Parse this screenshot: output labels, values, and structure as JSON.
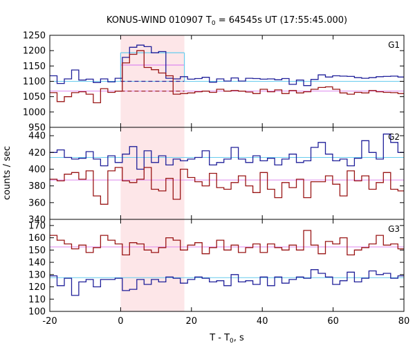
{
  "chart_data": {
    "type": "line",
    "title": {
      "main": "KONUS-WIND 010907 T",
      "sub": "0",
      "rest": " = 64545s UT (17:55:45.000)"
    },
    "xlabel": {
      "main": "T - T",
      "sub": "0",
      "rest": ", s"
    },
    "ylabel": "counts / sec",
    "xlim": [
      -20,
      80
    ],
    "xticks": [
      -20,
      0,
      20,
      40,
      60,
      80
    ],
    "grid": false,
    "colors": {
      "blue": "#1f1f99",
      "red": "#991414",
      "cyan": "#66ccee",
      "violet": "#dd88ee",
      "shade": "#fde6e8"
    },
    "shaded_interval": [
      0,
      18
    ],
    "step": 2.048,
    "panels": [
      {
        "label": "G1",
        "ylim": [
          950,
          1250
        ],
        "yticks": [
          950,
          1000,
          1050,
          1100,
          1150,
          1200,
          1250
        ],
        "series": [
          {
            "color": "blue",
            "values": [
              1118,
              1093,
              1108,
              1137,
              1104,
              1107,
              1096,
              1108,
              1098,
              1110,
              1178,
              1211,
              1218,
              1213,
              1193,
              1197,
              1110,
              1108,
              1115,
              1107,
              1109,
              1113,
              1097,
              1108,
              1101,
              1111,
              1101,
              1110,
              1109,
              1107,
              1108,
              1105,
              1109,
              1090,
              1104,
              1086,
              1106,
              1121,
              1114,
              1118,
              1117,
              1116,
              1112,
              1110,
              1112,
              1115,
              1116,
              1117,
              1114
            ]
          },
          {
            "color": "red",
            "values": [
              1063,
              1034,
              1050,
              1063,
              1066,
              1058,
              1030,
              1076,
              1064,
              1068,
              1160,
              1188,
              1200,
              1145,
              1138,
              1127,
              1118,
              1058,
              1060,
              1062,
              1066,
              1068,
              1064,
              1074,
              1068,
              1070,
              1068,
              1065,
              1060,
              1074,
              1066,
              1072,
              1060,
              1070,
              1062,
              1066,
              1074,
              1080,
              1082,
              1074,
              1062,
              1058,
              1064,
              1062,
              1070,
              1066,
              1064,
              1063,
              1060
            ]
          }
        ],
        "levels": [
          {
            "color": "cyan",
            "value": 1100
          },
          {
            "color": "violet",
            "value": 1068
          }
        ],
        "burst_levels": [
          {
            "color": "cyan",
            "value": 1193,
            "style": "solid"
          },
          {
            "color": "violet",
            "value": 1153,
            "style": "solid"
          },
          {
            "color": "blue",
            "value": 1100,
            "style": "dashed"
          },
          {
            "color": "red",
            "value": 1068,
            "style": "dashed"
          }
        ]
      },
      {
        "label": "G2",
        "ylim": [
          340,
          450
        ],
        "yticks": [
          340,
          360,
          380,
          400,
          420,
          440
        ],
        "series": [
          {
            "color": "blue",
            "values": [
              420,
              423,
              414,
              412,
              413,
              421,
              412,
              404,
              416,
              408,
              418,
              427,
              400,
              422,
              408,
              416,
              405,
              412,
              410,
              412,
              414,
              422,
              405,
              408,
              412,
              426,
              412,
              408,
              416,
              410,
              413,
              405,
              412,
              418,
              408,
              410,
              426,
              432,
              418,
              410,
              412,
              404,
              413,
              434,
              420,
              412,
              442,
              432,
              420,
              414
            ]
          },
          {
            "color": "red",
            "values": [
              388,
              386,
              394,
              396,
              388,
              398,
              368,
              358,
              398,
              402,
              386,
              384,
              388,
              402,
              376,
              374,
              389,
              364,
              400,
              390,
              385,
              380,
              395,
              378,
              376,
              384,
              392,
              380,
              372,
              396,
              376,
              366,
              384,
              378,
              388,
              366,
              385,
              385,
              392,
              382,
              368,
              398,
              386,
              392,
              376,
              384,
              396,
              376,
              374,
              390
            ]
          }
        ],
        "levels": [
          {
            "color": "cyan",
            "value": 414
          },
          {
            "color": "violet",
            "value": 387
          }
        ],
        "burst_levels": []
      },
      {
        "label": "G3",
        "ylim": [
          100,
          175
        ],
        "yticks": [
          100,
          110,
          120,
          130,
          140,
          150,
          160,
          170
        ],
        "series": [
          {
            "color": "blue",
            "values": [
              129,
              121,
              127,
              113,
              124,
              126,
              120,
              126,
              126,
              127,
              117,
              118,
              126,
              122,
              126,
              124,
              128,
              127,
              123,
              126,
              128,
              127,
              124,
              125,
              121,
              130,
              124,
              125,
              122,
              128,
              121,
              128,
              123,
              126,
              128,
              127,
              134,
              131,
              128,
              122,
              125,
              132,
              124,
              127,
              133,
              130,
              131,
              127,
              129,
              126
            ]
          },
          {
            "color": "red",
            "values": [
              162,
              158,
              155,
              151,
              154,
              148,
              152,
              162,
              158,
              155,
              146,
              156,
              155,
              150,
              148,
              152,
              160,
              158,
              150,
              154,
              156,
              147,
              152,
              158,
              150,
              154,
              148,
              152,
              155,
              148,
              155,
              152,
              150,
              154,
              150,
              166,
              154,
              147,
              157,
              155,
              160,
              146,
              150,
              152,
              155,
              162,
              154,
              155,
              151,
              150
            ]
          }
        ],
        "levels": [
          {
            "color": "cyan",
            "value": 127.5
          },
          {
            "color": "violet",
            "value": 152.5
          }
        ],
        "burst_levels": []
      }
    ]
  }
}
